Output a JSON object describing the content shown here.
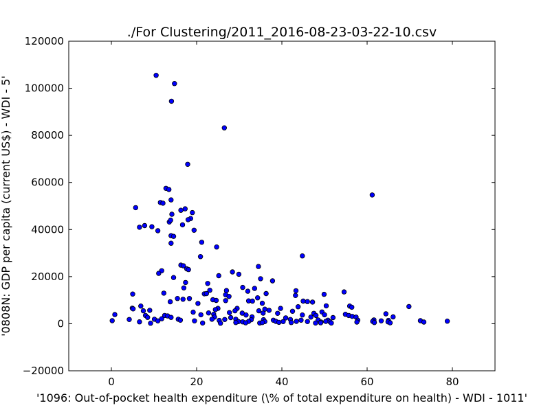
{
  "chart_data": {
    "type": "scatter",
    "title": "./For Clustering/2011_2016-08-23-03-22-10.csv",
    "xlabel": "'1096: Out-of-pocket health expenditure  (\\% of total expenditure on health) - WDI - 1011'",
    "ylabel": "'0808N: GDP per capita  (current US$) - WDI - 5'",
    "xlim": [
      -10,
      90
    ],
    "ylim": [
      -20000,
      120000
    ],
    "x_ticks": [
      0,
      20,
      40,
      60,
      80
    ],
    "y_ticks": [
      -20000,
      0,
      20000,
      40000,
      60000,
      80000,
      100000,
      120000
    ],
    "x_tick_labels": [
      "0",
      "20",
      "40",
      "60",
      "80"
    ],
    "y_tick_labels": [
      "−20000",
      "0",
      "20000",
      "40000",
      "60000",
      "80000",
      "100000",
      "120000"
    ],
    "grid": false,
    "point_color": "#0000ff",
    "points": [
      [
        10.5,
        105500
      ],
      [
        14.8,
        102000
      ],
      [
        14.1,
        94500
      ],
      [
        26.5,
        83200
      ],
      [
        17.9,
        67700
      ],
      [
        61.2,
        54700
      ],
      [
        12.8,
        57500
      ],
      [
        13.5,
        57000
      ],
      [
        11.5,
        51500
      ],
      [
        12.1,
        51200
      ],
      [
        14.0,
        52600
      ],
      [
        5.7,
        49300
      ],
      [
        16.3,
        48200
      ],
      [
        17.3,
        48800
      ],
      [
        19.0,
        47200
      ],
      [
        14.2,
        46500
      ],
      [
        18.6,
        44700
      ],
      [
        13.6,
        43200
      ],
      [
        13.9,
        44000
      ],
      [
        18.0,
        44200
      ],
      [
        7.8,
        41700
      ],
      [
        6.6,
        41000
      ],
      [
        9.5,
        41200
      ],
      [
        16.7,
        42000
      ],
      [
        10.9,
        39500
      ],
      [
        19.4,
        39700
      ],
      [
        14.0,
        37400
      ],
      [
        14.6,
        37100
      ],
      [
        21.2,
        34600
      ],
      [
        14.0,
        34200
      ],
      [
        24.7,
        32600
      ],
      [
        44.8,
        28800
      ],
      [
        20.9,
        28500
      ],
      [
        16.3,
        24900
      ],
      [
        16.9,
        24600
      ],
      [
        34.5,
        24300
      ],
      [
        17.7,
        23300
      ],
      [
        18.1,
        23000
      ],
      [
        11.8,
        22500
      ],
      [
        11.1,
        21400
      ],
      [
        28.4,
        22000
      ],
      [
        29.9,
        21000
      ],
      [
        14.6,
        19600
      ],
      [
        25.2,
        20400
      ],
      [
        35.0,
        19100
      ],
      [
        37.8,
        18200
      ],
      [
        17.4,
        17500
      ],
      [
        22.6,
        17100
      ],
      [
        30.8,
        15400
      ],
      [
        17.0,
        15200
      ],
      [
        33.6,
        15000
      ],
      [
        23.1,
        14200
      ],
      [
        27.0,
        14100
      ],
      [
        32.0,
        13800
      ],
      [
        43.3,
        14000
      ],
      [
        54.6,
        13500
      ],
      [
        5.0,
        12600
      ],
      [
        12.3,
        13000
      ],
      [
        21.8,
        12700
      ],
      [
        22.3,
        12800
      ],
      [
        26.8,
        12300
      ],
      [
        36.3,
        12800
      ],
      [
        43.2,
        12000
      ],
      [
        49.9,
        12500
      ],
      [
        27.6,
        11600
      ],
      [
        34.3,
        11000
      ],
      [
        15.5,
        10700
      ],
      [
        16.8,
        10400
      ],
      [
        18.3,
        10700
      ],
      [
        23.8,
        10200
      ],
      [
        24.6,
        9900
      ],
      [
        13.8,
        9300
      ],
      [
        26.8,
        9800
      ],
      [
        32.2,
        9700
      ],
      [
        33.1,
        9600
      ],
      [
        45.0,
        9600
      ],
      [
        46.0,
        9400
      ],
      [
        47.2,
        9200
      ],
      [
        20.3,
        8600
      ],
      [
        35.4,
        8700
      ],
      [
        55.9,
        7500
      ],
      [
        6.9,
        7500
      ],
      [
        43.8,
        7200
      ],
      [
        50.4,
        7600
      ],
      [
        56.4,
        7000
      ],
      [
        69.8,
        7300
      ],
      [
        4.9,
        6600
      ],
      [
        5.1,
        6300
      ],
      [
        25.0,
        6500
      ],
      [
        29.5,
        6500
      ],
      [
        36.0,
        6200
      ],
      [
        39.7,
        6500
      ],
      [
        7.5,
        5500
      ],
      [
        9.0,
        5700
      ],
      [
        24.4,
        6000
      ],
      [
        29.0,
        5500
      ],
      [
        34.6,
        5500
      ],
      [
        37.0,
        5700
      ],
      [
        42.5,
        5300
      ],
      [
        49.4,
        5000
      ],
      [
        19.2,
        4900
      ],
      [
        22.8,
        4600
      ],
      [
        27.7,
        4700
      ],
      [
        30.7,
        4500
      ],
      [
        35.6,
        4500
      ],
      [
        39.0,
        4400
      ],
      [
        47.5,
        4400
      ],
      [
        54.9,
        4000
      ],
      [
        64.4,
        4200
      ],
      [
        0.8,
        3900
      ],
      [
        8.0,
        3500
      ],
      [
        12.5,
        3500
      ],
      [
        13.2,
        3300
      ],
      [
        21.0,
        3800
      ],
      [
        24.0,
        4000
      ],
      [
        31.6,
        3700
      ],
      [
        44.8,
        3700
      ],
      [
        48.0,
        3500
      ],
      [
        50.0,
        3800
      ],
      [
        55.7,
        3500
      ],
      [
        8.5,
        2700
      ],
      [
        14.0,
        2700
      ],
      [
        24.2,
        2800
      ],
      [
        28.0,
        2600
      ],
      [
        33.0,
        2900
      ],
      [
        40.9,
        2500
      ],
      [
        46.8,
        2800
      ],
      [
        52.0,
        2600
      ],
      [
        56.5,
        3100
      ],
      [
        57.4,
        2800
      ],
      [
        66.1,
        2900
      ],
      [
        4.2,
        1800
      ],
      [
        10.1,
        1900
      ],
      [
        11.8,
        2100
      ],
      [
        15.7,
        1900
      ],
      [
        23.6,
        1900
      ],
      [
        26.6,
        1800
      ],
      [
        29.2,
        1900
      ],
      [
        32.8,
        1700
      ],
      [
        35.7,
        1700
      ],
      [
        38.0,
        1500
      ],
      [
        42.0,
        1800
      ],
      [
        44.5,
        1500
      ],
      [
        48.5,
        1600
      ],
      [
        50.8,
        1500
      ],
      [
        57.8,
        1500
      ],
      [
        61.6,
        1600
      ],
      [
        63.3,
        1200
      ],
      [
        65.0,
        1400
      ],
      [
        72.5,
        1300
      ],
      [
        0.2,
        1300
      ],
      [
        6.6,
        800
      ],
      [
        10.9,
        1200
      ],
      [
        16.2,
        1500
      ],
      [
        19.5,
        1200
      ],
      [
        25.3,
        1400
      ],
      [
        29.8,
        900
      ],
      [
        30.8,
        800
      ],
      [
        32.2,
        1000
      ],
      [
        36.0,
        900
      ],
      [
        38.6,
        1000
      ],
      [
        40.3,
        900
      ],
      [
        43.4,
        1000
      ],
      [
        46.0,
        900
      ],
      [
        49.2,
        700
      ],
      [
        50.3,
        1000
      ],
      [
        51.3,
        800
      ],
      [
        57.6,
        700
      ],
      [
        61.3,
        1000
      ],
      [
        64.9,
        800
      ],
      [
        73.3,
        700
      ],
      [
        78.8,
        1100
      ],
      [
        9.2,
        200
      ],
      [
        21.4,
        300
      ],
      [
        25.6,
        200
      ],
      [
        29.2,
        500
      ],
      [
        31.5,
        400
      ],
      [
        34.8,
        300
      ],
      [
        35.4,
        500
      ],
      [
        39.3,
        600
      ],
      [
        42.2,
        500
      ],
      [
        47.9,
        300
      ],
      [
        49.1,
        400
      ],
      [
        51.6,
        300
      ],
      [
        61.7,
        500
      ],
      [
        65.4,
        400
      ]
    ]
  }
}
